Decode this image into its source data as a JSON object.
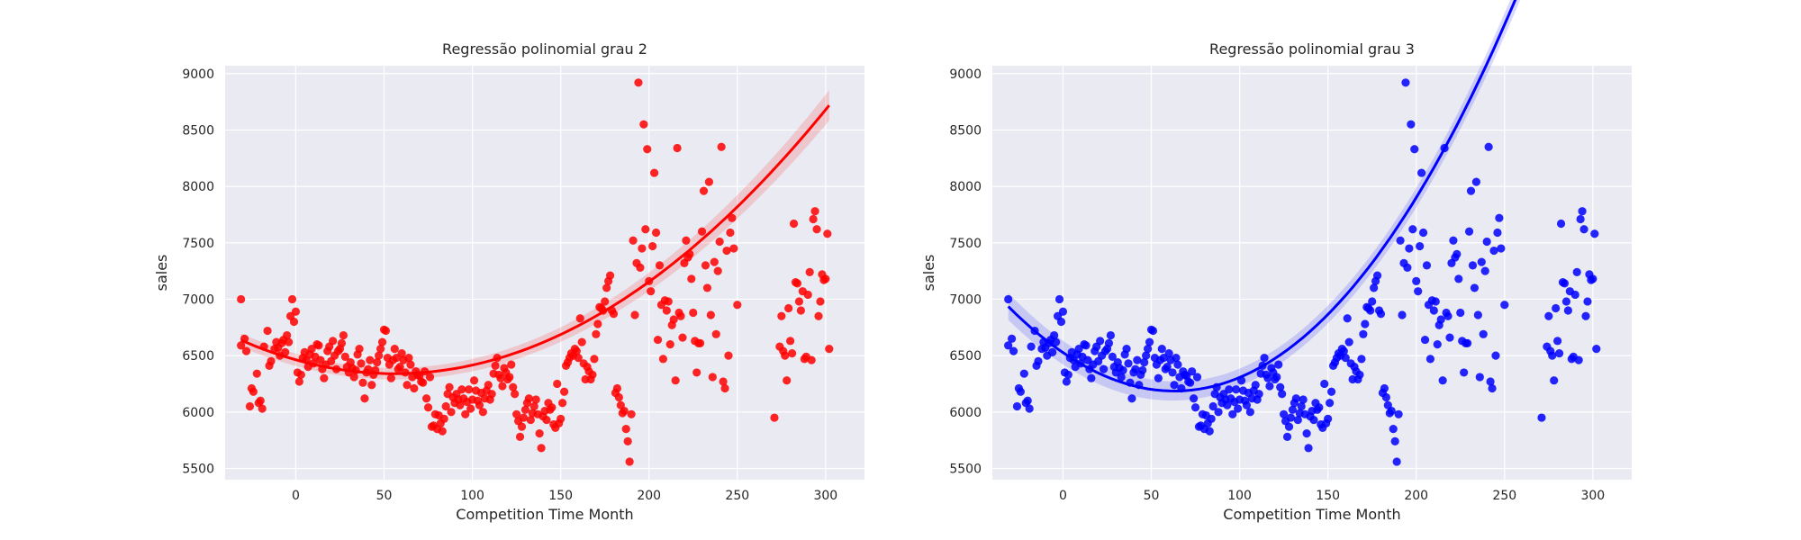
{
  "chart_data": [
    {
      "type": "scatter",
      "title": "Regressão polinomial grau 2",
      "xlabel": "Competition Time Month",
      "ylabel": "sales",
      "xlim": [
        -40,
        322
      ],
      "ylim": [
        5400,
        9070
      ],
      "xticks": [
        0,
        50,
        100,
        150,
        200,
        250,
        300
      ],
      "yticks": [
        5500,
        6000,
        6500,
        7000,
        7500,
        8000,
        8500,
        9000
      ],
      "grid": true,
      "color": "#ff0000",
      "fit": {
        "degree": 2,
        "coef": [
          6462.8,
          -4.4,
          0.0393
        ],
        "ci_halfwidth": [
          60,
          25,
          135
        ]
      },
      "points": [
        [
          -31,
          7000
        ],
        [
          -31,
          6590
        ],
        [
          -29,
          6650
        ],
        [
          -28,
          6540
        ],
        [
          -26,
          6050
        ],
        [
          -25,
          6210
        ],
        [
          -24,
          6180
        ],
        [
          -22,
          6340
        ],
        [
          -21,
          6080
        ],
        [
          -20,
          6100
        ],
        [
          -19,
          6030
        ],
        [
          -18,
          6580
        ],
        [
          -16,
          6720
        ],
        [
          -15,
          6410
        ],
        [
          -14,
          6450
        ],
        [
          -12,
          6560
        ],
        [
          -11,
          6620
        ],
        [
          -10,
          6570
        ],
        [
          -9,
          6500
        ],
        [
          -8,
          6610
        ],
        [
          -7,
          6640
        ],
        [
          -6,
          6530
        ],
        [
          -5,
          6680
        ],
        [
          -4,
          6620
        ],
        [
          -3,
          6850
        ],
        [
          -2,
          7000
        ],
        [
          -1,
          6800
        ],
        [
          0,
          6890
        ],
        [
          1,
          6350
        ],
        [
          2,
          6270
        ],
        [
          3,
          6330
        ],
        [
          4,
          6480
        ],
        [
          5,
          6530
        ],
        [
          6,
          6460
        ],
        [
          7,
          6400
        ],
        [
          8,
          6510
        ],
        [
          9,
          6560
        ],
        [
          10,
          6430
        ],
        [
          11,
          6490
        ],
        [
          12,
          6600
        ],
        [
          13,
          6590
        ],
        [
          14,
          6460
        ],
        [
          15,
          6380
        ],
        [
          16,
          6300
        ],
        [
          17,
          6420
        ],
        [
          18,
          6540
        ],
        [
          19,
          6580
        ],
        [
          20,
          6450
        ],
        [
          21,
          6630
        ],
        [
          22,
          6500
        ],
        [
          23,
          6380
        ],
        [
          24,
          6540
        ],
        [
          25,
          6560
        ],
        [
          26,
          6610
        ],
        [
          27,
          6680
        ],
        [
          28,
          6490
        ],
        [
          29,
          6400
        ],
        [
          30,
          6350
        ],
        [
          31,
          6440
        ],
        [
          32,
          6390
        ],
        [
          33,
          6310
        ],
        [
          34,
          6370
        ],
        [
          35,
          6510
        ],
        [
          36,
          6560
        ],
        [
          37,
          6430
        ],
        [
          38,
          6260
        ],
        [
          39,
          6120
        ],
        [
          40,
          6350
        ],
        [
          41,
          6380
        ],
        [
          42,
          6460
        ],
        [
          43,
          6240
        ],
        [
          44,
          6330
        ],
        [
          45,
          6370
        ],
        [
          46,
          6440
        ],
        [
          47,
          6500
        ],
        [
          48,
          6560
        ],
        [
          49,
          6620
        ],
        [
          50,
          6730
        ],
        [
          51,
          6720
        ],
        [
          52,
          6480
        ],
        [
          53,
          6420
        ],
        [
          54,
          6300
        ],
        [
          55,
          6460
        ],
        [
          56,
          6560
        ],
        [
          57,
          6480
        ],
        [
          58,
          6380
        ],
        [
          59,
          6400
        ],
        [
          60,
          6520
        ],
        [
          61,
          6460
        ],
        [
          62,
          6350
        ],
        [
          63,
          6240
        ],
        [
          64,
          6480
        ],
        [
          65,
          6420
        ],
        [
          66,
          6310
        ],
        [
          67,
          6210
        ],
        [
          68,
          6360
        ],
        [
          69,
          6330
        ],
        [
          70,
          6320
        ],
        [
          71,
          6270
        ],
        [
          72,
          6260
        ],
        [
          73,
          6360
        ],
        [
          74,
          6120
        ],
        [
          75,
          6040
        ],
        [
          76,
          6310
        ],
        [
          77,
          5870
        ],
        [
          78,
          5880
        ],
        [
          79,
          5980
        ],
        [
          80,
          5850
        ],
        [
          81,
          5970
        ],
        [
          82,
          5900
        ],
        [
          83,
          5830
        ],
        [
          84,
          5940
        ],
        [
          85,
          6050
        ],
        [
          86,
          6160
        ],
        [
          87,
          6220
        ],
        [
          88,
          6000
        ],
        [
          89,
          6130
        ],
        [
          90,
          6080
        ],
        [
          91,
          6160
        ],
        [
          92,
          6110
        ],
        [
          93,
          6060
        ],
        [
          94,
          6200
        ],
        [
          95,
          6120
        ],
        [
          96,
          5980
        ],
        [
          97,
          6090
        ],
        [
          98,
          6200
        ],
        [
          99,
          6030
        ],
        [
          100,
          6110
        ],
        [
          101,
          6280
        ],
        [
          102,
          6190
        ],
        [
          103,
          6100
        ],
        [
          104,
          6060
        ],
        [
          105,
          6170
        ],
        [
          106,
          6000
        ],
        [
          107,
          6120
        ],
        [
          108,
          6190
        ],
        [
          109,
          6240
        ],
        [
          110,
          6110
        ],
        [
          111,
          6160
        ],
        [
          112,
          6340
        ],
        [
          113,
          6410
        ],
        [
          114,
          6480
        ],
        [
          115,
          6330
        ],
        [
          116,
          6300
        ],
        [
          117,
          6230
        ],
        [
          118,
          6390
        ],
        [
          119,
          6350
        ],
        [
          120,
          6290
        ],
        [
          121,
          6310
        ],
        [
          122,
          6420
        ],
        [
          123,
          6220
        ],
        [
          124,
          6160
        ],
        [
          125,
          5980
        ],
        [
          126,
          5920
        ],
        [
          127,
          5780
        ],
        [
          128,
          5870
        ],
        [
          129,
          5950
        ],
        [
          130,
          6020
        ],
        [
          131,
          6080
        ],
        [
          132,
          6120
        ],
        [
          133,
          5930
        ],
        [
          134,
          5990
        ],
        [
          135,
          6050
        ],
        [
          136,
          6110
        ],
        [
          137,
          5980
        ],
        [
          138,
          5810
        ],
        [
          139,
          5680
        ],
        [
          140,
          5960
        ],
        [
          141,
          6010
        ],
        [
          142,
          5930
        ],
        [
          143,
          6080
        ],
        [
          144,
          6020
        ],
        [
          145,
          6040
        ],
        [
          146,
          5890
        ],
        [
          147,
          5860
        ],
        [
          148,
          6250
        ],
        [
          149,
          5900
        ],
        [
          150,
          5940
        ],
        [
          151,
          6080
        ],
        [
          152,
          6180
        ],
        [
          153,
          6410
        ],
        [
          154,
          6440
        ],
        [
          155,
          6480
        ],
        [
          156,
          6520
        ],
        [
          157,
          6500
        ],
        [
          158,
          6560
        ],
        [
          159,
          6540
        ],
        [
          160,
          6480
        ],
        [
          161,
          6830
        ],
        [
          162,
          6620
        ],
        [
          163,
          6430
        ],
        [
          164,
          6290
        ],
        [
          165,
          6400
        ],
        [
          166,
          6360
        ],
        [
          167,
          6290
        ],
        [
          168,
          6330
        ],
        [
          169,
          6470
        ],
        [
          170,
          6690
        ],
        [
          171,
          6780
        ],
        [
          172,
          6930
        ],
        [
          173,
          6920
        ],
        [
          174,
          6900
        ],
        [
          175,
          6980
        ],
        [
          176,
          7100
        ],
        [
          177,
          7160
        ],
        [
          178,
          7210
        ],
        [
          179,
          6900
        ],
        [
          180,
          6870
        ],
        [
          181,
          6170
        ],
        [
          182,
          6210
        ],
        [
          183,
          6130
        ],
        [
          184,
          6060
        ],
        [
          185,
          5990
        ],
        [
          186,
          6010
        ],
        [
          187,
          5850
        ],
        [
          188,
          5740
        ],
        [
          189,
          5560
        ],
        [
          190,
          5980
        ],
        [
          191,
          7520
        ],
        [
          192,
          6860
        ],
        [
          193,
          7320
        ],
        [
          194,
          8920
        ],
        [
          195,
          7280
        ],
        [
          196,
          7450
        ],
        [
          197,
          8550
        ],
        [
          198,
          7620
        ],
        [
          199,
          8330
        ],
        [
          200,
          7160
        ],
        [
          201,
          7070
        ],
        [
          202,
          7470
        ],
        [
          203,
          8120
        ],
        [
          204,
          7590
        ],
        [
          205,
          6640
        ],
        [
          206,
          7300
        ],
        [
          207,
          6950
        ],
        [
          208,
          6470
        ],
        [
          209,
          6990
        ],
        [
          210,
          6900
        ],
        [
          211,
          6980
        ],
        [
          212,
          6600
        ],
        [
          213,
          6770
        ],
        [
          214,
          6820
        ],
        [
          215,
          6280
        ],
        [
          216,
          8340
        ],
        [
          217,
          6880
        ],
        [
          218,
          6850
        ],
        [
          219,
          6660
        ],
        [
          220,
          7320
        ],
        [
          221,
          7520
        ],
        [
          222,
          7370
        ],
        [
          223,
          7400
        ],
        [
          224,
          7180
        ],
        [
          225,
          6880
        ],
        [
          226,
          6630
        ],
        [
          227,
          6350
        ],
        [
          228,
          6610
        ],
        [
          229,
          6610
        ],
        [
          230,
          7600
        ],
        [
          231,
          7960
        ],
        [
          232,
          7300
        ],
        [
          233,
          7100
        ],
        [
          234,
          8040
        ],
        [
          235,
          6860
        ],
        [
          236,
          6310
        ],
        [
          237,
          7330
        ],
        [
          238,
          6690
        ],
        [
          239,
          7250
        ],
        [
          240,
          7510
        ],
        [
          241,
          8350
        ],
        [
          242,
          6270
        ],
        [
          243,
          6210
        ],
        [
          244,
          7430
        ],
        [
          245,
          6500
        ],
        [
          246,
          7590
        ],
        [
          247,
          7720
        ],
        [
          248,
          7450
        ],
        [
          250,
          6950
        ],
        [
          271,
          5950
        ],
        [
          274,
          6580
        ],
        [
          275,
          6850
        ],
        [
          276,
          6540
        ],
        [
          277,
          6500
        ],
        [
          278,
          6280
        ],
        [
          279,
          6920
        ],
        [
          280,
          6630
        ],
        [
          281,
          6520
        ],
        [
          282,
          7670
        ],
        [
          283,
          7150
        ],
        [
          284,
          7140
        ],
        [
          285,
          6980
        ],
        [
          286,
          6900
        ],
        [
          287,
          7070
        ],
        [
          288,
          6470
        ],
        [
          289,
          6490
        ],
        [
          290,
          7040
        ],
        [
          291,
          7240
        ],
        [
          292,
          6460
        ],
        [
          293,
          7710
        ],
        [
          294,
          7780
        ],
        [
          295,
          7620
        ],
        [
          296,
          6850
        ],
        [
          297,
          6980
        ],
        [
          298,
          7220
        ],
        [
          299,
          7170
        ],
        [
          300,
          7180
        ],
        [
          301,
          7580
        ],
        [
          302,
          6560
        ]
      ]
    },
    {
      "type": "scatter",
      "title": "Regressão polinomial grau 3",
      "xlabel": "Competition Time Month",
      "ylabel": "sales",
      "xlim": [
        -40,
        322
      ],
      "ylim": [
        5400,
        9070
      ],
      "xticks": [
        0,
        50,
        100,
        150,
        200,
        250,
        300
      ],
      "yticks": [
        5500,
        6000,
        6500,
        7000,
        7500,
        8000,
        8500,
        9000
      ],
      "grid": true,
      "color": "#0000ff",
      "fit": {
        "degree": 3,
        "coef": [
          6526.5,
          -10.68,
          0.0818,
          2.97e-05
        ],
        "ci_halfwidth": [
          120,
          30,
          130
        ]
      },
      "points": "same"
    }
  ]
}
